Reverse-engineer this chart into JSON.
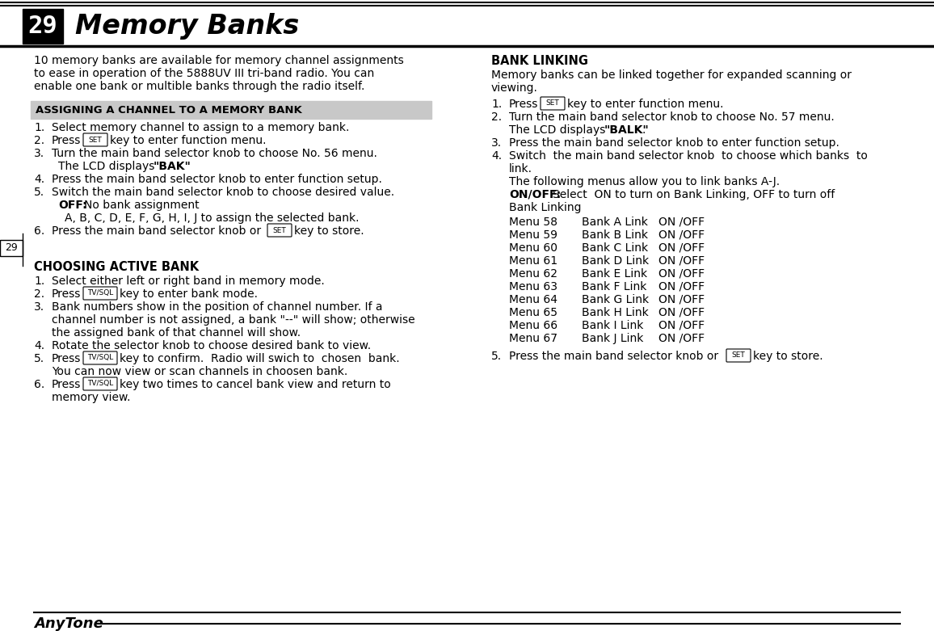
{
  "page_number": "29",
  "title": "Memory Banks",
  "bg_color": "#ffffff",
  "section1_title": "ASSIGNING A CHANNEL TO A MEMORY BANK",
  "section2_title": "CHOOSING ACTIVE BANK",
  "section3_title": "BANK LINKING",
  "brand_name": "AnyTone",
  "text_color": "#000000",
  "intro_lines": [
    "10 memory banks are available for memory channel assignments",
    "to ease in operation of the 5888UV III tri-band radio. You can",
    "enable one bank or multible banks through the radio itself."
  ],
  "bl_intro_lines": [
    "Memory banks can be linked together for expanded scanning or",
    "viewing."
  ],
  "menu_items": [
    [
      "Menu 58",
      "Bank A Link",
      "ON /OFF"
    ],
    [
      "Menu 59",
      "Bank B Link",
      "ON /OFF"
    ],
    [
      "Menu 60",
      "Bank C Link",
      "ON /OFF"
    ],
    [
      "Menu 61",
      "Bank D Link",
      "ON /OFF"
    ],
    [
      "Menu 62",
      "Bank E Link",
      "ON /OFF "
    ],
    [
      "Menu 63",
      "Bank F Link",
      "ON /OFF"
    ],
    [
      "Menu 64",
      "Bank G Link",
      "ON /OFF"
    ],
    [
      "Menu 65",
      "Bank H Link",
      "ON /OFF"
    ],
    [
      "Menu 66",
      "Bank I Link",
      "ON /OFF"
    ],
    [
      "Menu 67",
      "Bank J Link",
      "ON /OFF"
    ]
  ]
}
